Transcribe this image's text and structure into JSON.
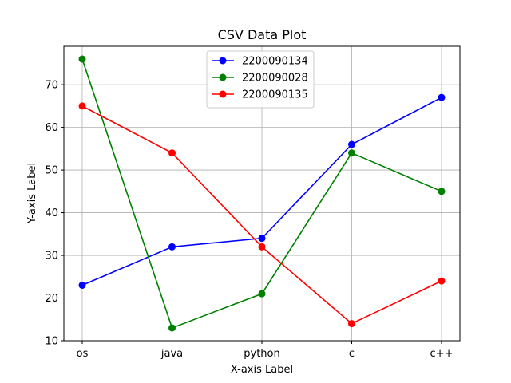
{
  "chart_data": {
    "type": "line",
    "title": "CSV Data Plot",
    "xlabel": "X-axis Label",
    "ylabel": "Y-axis Label",
    "categories": [
      "os",
      "java",
      "python",
      "c",
      "c++"
    ],
    "ylim": [
      10,
      79
    ],
    "yticks": [
      10,
      20,
      30,
      40,
      50,
      60,
      70
    ],
    "grid": true,
    "legend_position": "top-center",
    "series": [
      {
        "name": "2200090134",
        "color": "#0000ff",
        "values": [
          23,
          32,
          34,
          56,
          67
        ]
      },
      {
        "name": "2200090028",
        "color": "#008000",
        "values": [
          76,
          13,
          21,
          54,
          45
        ]
      },
      {
        "name": "2200090135",
        "color": "#ff0000",
        "values": [
          65,
          54,
          32,
          14,
          24
        ]
      }
    ]
  }
}
